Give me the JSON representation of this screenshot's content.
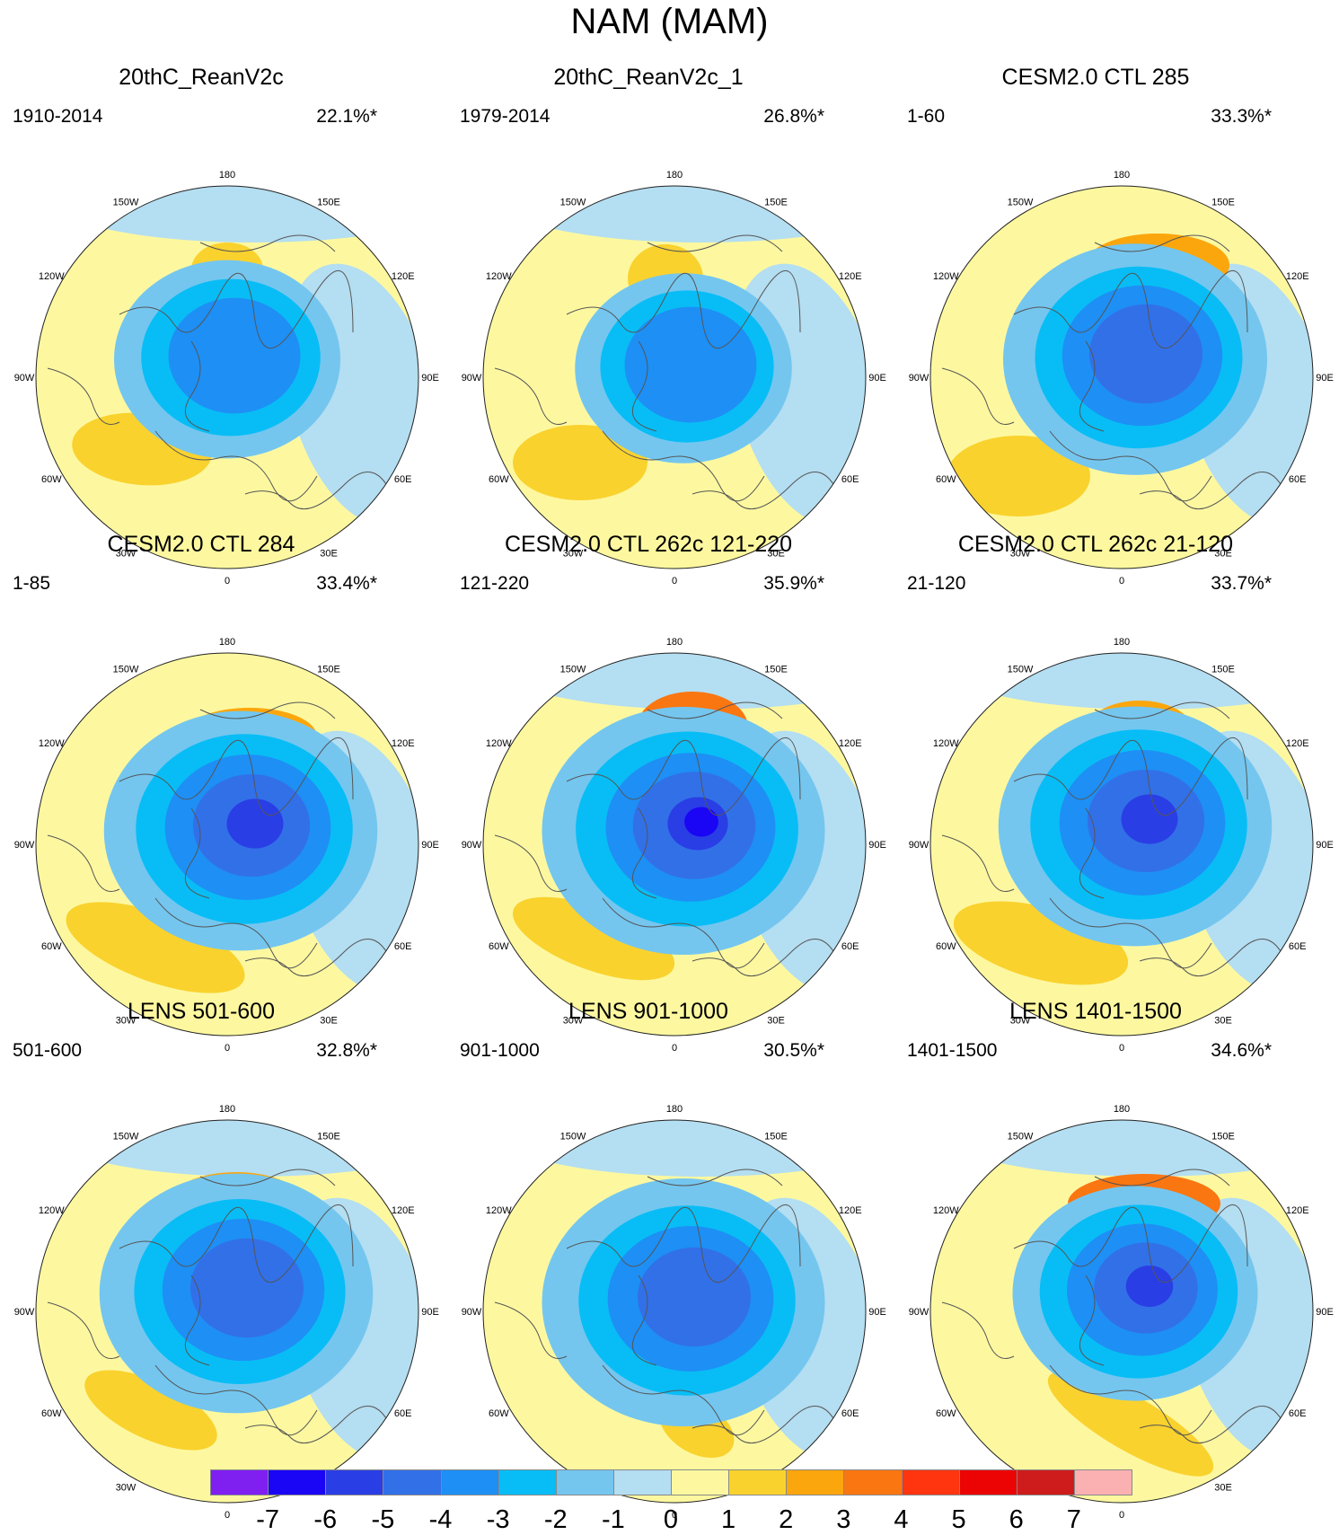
{
  "title": "NAM (MAM)",
  "lon_labels": [
    {
      "text": "180",
      "deg": 180
    },
    {
      "text": "150E",
      "deg": 150
    },
    {
      "text": "120E",
      "deg": 120
    },
    {
      "text": "90E",
      "deg": 90
    },
    {
      "text": "60E",
      "deg": 60
    },
    {
      "text": "30E",
      "deg": 30
    },
    {
      "text": "0",
      "deg": 0
    },
    {
      "text": "30W",
      "deg": -30
    },
    {
      "text": "60W",
      "deg": -60
    },
    {
      "text": "90W",
      "deg": -90
    },
    {
      "text": "120W",
      "deg": -120
    },
    {
      "text": "150W",
      "deg": -150
    }
  ],
  "panels": [
    {
      "title": "20thC_ReanV2c",
      "period": "1910-2014",
      "pct": "22.1%*"
    },
    {
      "title": "20thC_ReanV2c_1",
      "period": "1979-2014",
      "pct": "26.8%*"
    },
    {
      "title": "CESM2.0 CTL 285",
      "period": "1-60",
      "pct": "33.3%*"
    },
    {
      "title": "CESM2.0 CTL 284",
      "period": "1-85",
      "pct": "33.4%*"
    },
    {
      "title": "CESM2.0 CTL 262c 121-220",
      "period": "121-220",
      "pct": "35.9%*"
    },
    {
      "title": "CESM2.0 CTL 262c 21-120",
      "period": "21-120",
      "pct": "33.7%*"
    },
    {
      "title": "LENS 501-600",
      "period": "501-600",
      "pct": "32.8%*"
    },
    {
      "title": "LENS 901-1000",
      "period": "901-1000",
      "pct": "30.5%*"
    },
    {
      "title": "LENS 1401-1500",
      "period": "1401-1500",
      "pct": "34.6%*"
    }
  ],
  "colorbar": {
    "colors": [
      "#7f1ff0",
      "#1a05f5",
      "#2a3ee5",
      "#3270e8",
      "#1e8ff5",
      "#08bdf5",
      "#74c6ef",
      "#b4def1",
      "#fdf8a0",
      "#fad22e",
      "#fba60d",
      "#fa7611",
      "#ff3510",
      "#ec0404",
      "#ce1c1c",
      "#fbb1b1"
    ],
    "labels": [
      "-7",
      "-6",
      "-5",
      "-4",
      "-3",
      "-2",
      "-1",
      "0",
      "1",
      "2",
      "3",
      "4",
      "5",
      "6",
      "7"
    ]
  }
}
